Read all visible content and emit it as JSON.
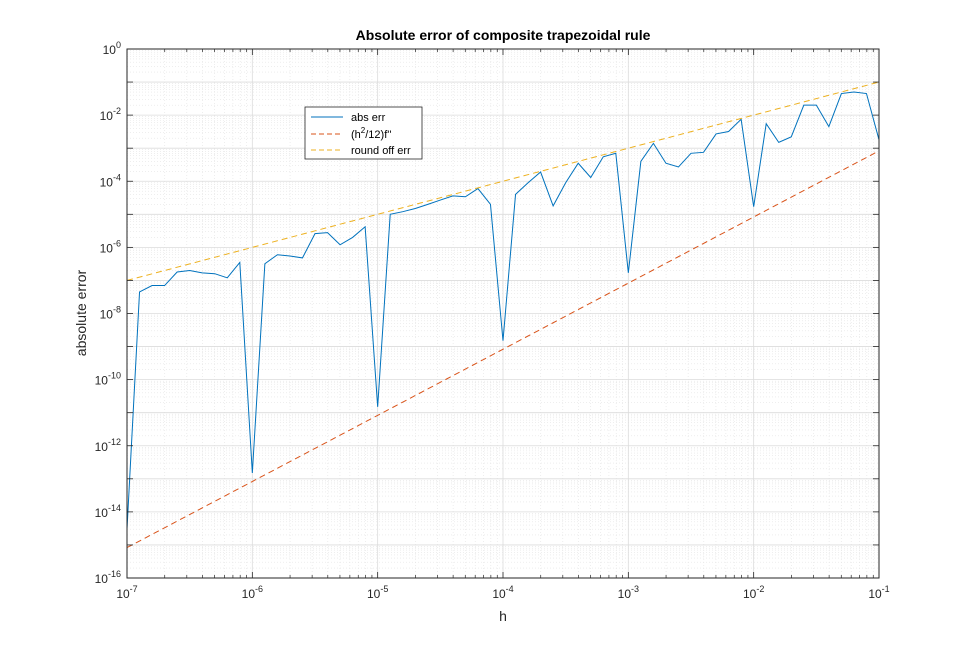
{
  "chart_data": {
    "type": "line",
    "title": "Absolute error of composite trapezoidal rule",
    "xlabel": "h",
    "ylabel": "absolute error",
    "xscale": "log",
    "yscale": "log",
    "xlim": [
      1e-07,
      0.1
    ],
    "ylim": [
      1e-16,
      1
    ],
    "grid": true,
    "minor_grid": true,
    "legend_position": "upper-left inside axes",
    "x_ticks": [
      {
        "value": 1e-07,
        "base": "10",
        "exp": "-7"
      },
      {
        "value": 1e-06,
        "base": "10",
        "exp": "-6"
      },
      {
        "value": 1e-05,
        "base": "10",
        "exp": "-5"
      },
      {
        "value": 0.0001,
        "base": "10",
        "exp": "-4"
      },
      {
        "value": 0.001,
        "base": "10",
        "exp": "-3"
      },
      {
        "value": 0.01,
        "base": "10",
        "exp": "-2"
      },
      {
        "value": 0.1,
        "base": "10",
        "exp": "-1"
      }
    ],
    "y_ticks": [
      {
        "value": 1e-16,
        "base": "10",
        "exp": "-16"
      },
      {
        "value": 1e-14,
        "base": "10",
        "exp": "-14"
      },
      {
        "value": 1e-12,
        "base": "10",
        "exp": "-12"
      },
      {
        "value": 1e-10,
        "base": "10",
        "exp": "-10"
      },
      {
        "value": 1e-08,
        "base": "10",
        "exp": "-8"
      },
      {
        "value": 1e-06,
        "base": "10",
        "exp": "-6"
      },
      {
        "value": 0.0001,
        "base": "10",
        "exp": "-4"
      },
      {
        "value": 0.01,
        "base": "10",
        "exp": "-2"
      },
      {
        "value": 1,
        "base": "10",
        "exp": "0"
      }
    ],
    "series": [
      {
        "name": "abs err",
        "legend_main": "abs err",
        "color": "#0072BD",
        "style": "solid",
        "x": [
          1e-07,
          1.259e-07,
          1.585e-07,
          1.995e-07,
          2.512e-07,
          3.162e-07,
          3.981e-07,
          5.012e-07,
          6.31e-07,
          7.943e-07,
          1e-06,
          1.259e-06,
          1.585e-06,
          1.995e-06,
          2.512e-06,
          3.162e-06,
          3.981e-06,
          5.012e-06,
          6.31e-06,
          7.943e-06,
          1e-05,
          1.259e-05,
          1.585e-05,
          1.995e-05,
          2.512e-05,
          3.162e-05,
          3.981e-05,
          5.012e-05,
          6.31e-05,
          7.943e-05,
          0.0001,
          0.0001259,
          0.0001585,
          0.0001995,
          0.0002512,
          0.0003162,
          0.0003981,
          0.0005012,
          0.000631,
          0.0007943,
          0.001,
          0.001259,
          0.001585,
          0.001995,
          0.002512,
          0.003162,
          0.003981,
          0.005012,
          0.00631,
          0.007943,
          0.01,
          0.01259,
          0.01585,
          0.01995,
          0.02512,
          0.03162,
          0.03981,
          0.05012,
          0.0631,
          0.07943,
          0.1
        ],
        "y": [
          3e-15,
          4.5e-08,
          7e-08,
          7e-08,
          1.8e-07,
          2e-07,
          1.7e-07,
          1.6e-07,
          1.2e-07,
          3.5e-07,
          1.5e-13,
          3.2e-07,
          6e-07,
          5.5e-07,
          4.8e-07,
          2.6e-06,
          2.8e-06,
          1.2e-06,
          2e-06,
          4.2e-06,
          1.5e-11,
          1e-05,
          1.2e-05,
          1.5e-05,
          2e-05,
          2.7e-05,
          3.6e-05,
          3.4e-05,
          6e-05,
          2e-05,
          1.5e-09,
          4e-05,
          9e-05,
          0.00019,
          1.8e-05,
          9e-05,
          0.00035,
          0.00013,
          0.00055,
          0.0007,
          1.7e-07,
          0.0004,
          0.0014,
          0.00035,
          0.00027,
          0.0007,
          0.00075,
          0.0027,
          0.0032,
          0.0075,
          1.7e-05,
          0.0055,
          0.0015,
          0.0022,
          0.02,
          0.02,
          0.0045,
          0.045,
          0.05,
          0.045,
          0.0018
        ]
      },
      {
        "name": "(h2/12)f''",
        "legend_main": "(h",
        "legend_sup": "2",
        "legend_tail": "/12)f''",
        "color": "#D95319",
        "style": "dashed",
        "x": [
          1e-07,
          0.1
        ],
        "y": [
          8.3e-16,
          0.00083
        ]
      },
      {
        "name": "round off err",
        "legend_main": "round off err",
        "color": "#EDB120",
        "style": "dashed",
        "x": [
          1e-07,
          0.1
        ],
        "y": [
          1e-07,
          0.1
        ]
      }
    ]
  }
}
